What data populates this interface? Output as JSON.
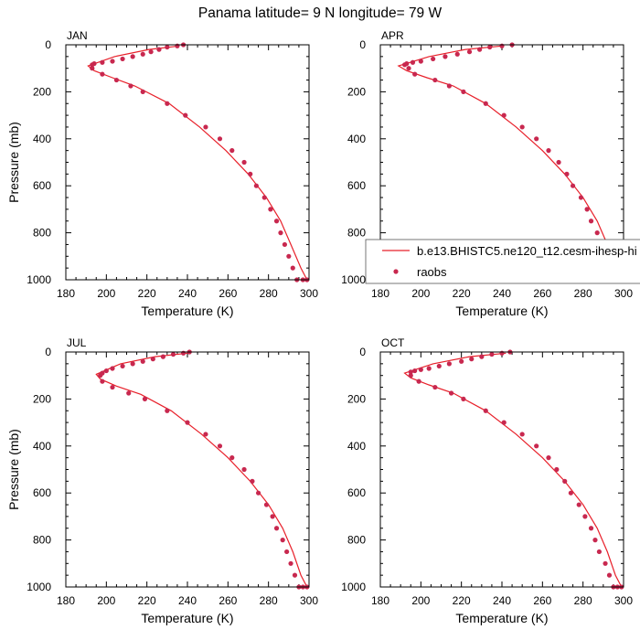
{
  "title": "Panama  latitude= 9 N longitude= 79 W",
  "legend": {
    "model_label": "b.e13.BHISTC5.ne120_t12.cesm-ihesp-hi",
    "obs_label": "raobs"
  },
  "colors": {
    "model_line": "#e8202a",
    "obs_marker": "#c8284f",
    "frame": "#000000"
  },
  "chart_data": [
    {
      "type": "line",
      "panel": "JAN",
      "xlabel": "Temperature (K)",
      "ylabel": "Pressure (mb)",
      "xlim": [
        180,
        300
      ],
      "ylim": [
        1000,
        0
      ],
      "xticks": [
        180,
        200,
        220,
        240,
        260,
        280,
        300
      ],
      "yticks": [
        0,
        200,
        400,
        600,
        800,
        1000
      ],
      "series": [
        {
          "name": "b.e13.BHISTC5.ne120_t12.cesm-ihesp-hi",
          "kind": "line",
          "x": [
            236,
            221,
            204,
            191,
            194,
            203,
            214,
            231,
            246,
            259,
            270,
            279,
            286,
            291,
            296,
            299
          ],
          "y": [
            5,
            20,
            50,
            90,
            110,
            140,
            175,
            250,
            350,
            450,
            550,
            650,
            750,
            850,
            950,
            1000
          ]
        },
        {
          "name": "raobs",
          "kind": "scatter",
          "x": [
            238,
            235,
            230,
            226,
            222,
            218,
            213,
            208,
            203,
            198,
            194,
            193,
            193,
            198,
            205,
            212,
            218,
            230,
            239,
            249,
            256,
            262,
            268,
            271,
            274,
            278,
            281,
            284,
            286,
            288,
            290,
            292,
            294,
            297,
            299
          ],
          "y": [
            0,
            5,
            10,
            20,
            30,
            40,
            50,
            60,
            70,
            75,
            80,
            85,
            100,
            125,
            150,
            175,
            200,
            250,
            300,
            350,
            400,
            450,
            500,
            550,
            600,
            650,
            700,
            750,
            800,
            850,
            900,
            950,
            1000,
            1000,
            1000
          ]
        }
      ]
    },
    {
      "type": "line",
      "panel": "APR",
      "xlabel": "Temperature (K)",
      "ylabel": "",
      "xlim": [
        180,
        300
      ],
      "ylim": [
        1000,
        0
      ],
      "xticks": [
        180,
        200,
        220,
        240,
        260,
        280,
        300
      ],
      "yticks": [
        0,
        200,
        400,
        600,
        800,
        1000
      ],
      "series": [
        {
          "name": "b.e13.BHISTC5.ne120_t12.cesm-ihesp-hi",
          "kind": "line",
          "x": [
            240,
            222,
            204,
            189,
            193,
            203,
            216,
            232,
            247,
            260,
            271,
            280,
            287,
            292,
            296,
            299
          ],
          "y": [
            5,
            20,
            50,
            90,
            110,
            140,
            175,
            250,
            350,
            450,
            550,
            650,
            750,
            850,
            950,
            1000
          ]
        },
        {
          "name": "raobs",
          "kind": "scatter",
          "x": [
            245,
            240,
            234,
            229,
            224,
            218,
            212,
            206,
            200,
            196,
            193,
            192,
            194,
            197,
            207,
            214,
            221,
            232,
            241,
            250,
            257,
            263,
            268,
            272,
            275,
            279,
            282,
            284,
            287,
            289,
            291,
            293,
            295,
            297,
            299
          ],
          "y": [
            0,
            5,
            10,
            20,
            30,
            40,
            50,
            60,
            70,
            75,
            80,
            85,
            100,
            125,
            150,
            175,
            200,
            250,
            300,
            350,
            400,
            450,
            500,
            550,
            600,
            650,
            700,
            750,
            800,
            850,
            900,
            950,
            1000,
            1000,
            1000
          ]
        }
      ]
    },
    {
      "type": "line",
      "panel": "JUL",
      "xlabel": "Temperature (K)",
      "ylabel": "Pressure (mb)",
      "xlim": [
        180,
        300
      ],
      "ylim": [
        1000,
        0
      ],
      "xticks": [
        180,
        200,
        220,
        240,
        260,
        280,
        300
      ],
      "yticks": [
        0,
        200,
        400,
        600,
        800,
        1000
      ],
      "series": [
        {
          "name": "b.e13.BHISTC5.ne120_t12.cesm-ihesp-hi",
          "kind": "line",
          "x": [
            240,
            224,
            207,
            195,
            197,
            205,
            217,
            232,
            247,
            260,
            271,
            280,
            287,
            292,
            296,
            299
          ],
          "y": [
            5,
            20,
            50,
            95,
            115,
            145,
            180,
            250,
            350,
            450,
            550,
            650,
            750,
            850,
            950,
            1000
          ]
        },
        {
          "name": "raobs",
          "kind": "scatter",
          "x": [
            241,
            238,
            233,
            228,
            223,
            218,
            213,
            208,
            203,
            200,
            198,
            197,
            198,
            203,
            211,
            219,
            230,
            240,
            249,
            256,
            262,
            268,
            272,
            275,
            279,
            282,
            284,
            287,
            289,
            291,
            293,
            295,
            297,
            299
          ],
          "y": [
            0,
            5,
            10,
            20,
            30,
            40,
            50,
            60,
            70,
            80,
            90,
            100,
            125,
            150,
            175,
            200,
            250,
            300,
            350,
            400,
            450,
            500,
            550,
            600,
            650,
            700,
            750,
            800,
            850,
            900,
            950,
            1000,
            1000,
            1000
          ]
        }
      ]
    },
    {
      "type": "line",
      "panel": "OCT",
      "xlabel": "Temperature (K)",
      "ylabel": "",
      "xlim": [
        180,
        300
      ],
      "ylim": [
        1000,
        0
      ],
      "xticks": [
        180,
        200,
        220,
        240,
        260,
        280,
        300
      ],
      "yticks": [
        0,
        200,
        400,
        600,
        800,
        1000
      ],
      "series": [
        {
          "name": "b.e13.BHISTC5.ne120_t12.cesm-ihesp-hi",
          "kind": "line",
          "x": [
            242,
            224,
            206,
            192,
            195,
            204,
            216,
            232,
            247,
            260,
            271,
            280,
            287,
            292,
            296,
            299
          ],
          "y": [
            5,
            20,
            50,
            90,
            110,
            140,
            175,
            250,
            350,
            450,
            550,
            650,
            750,
            850,
            950,
            1000
          ]
        },
        {
          "name": "raobs",
          "kind": "scatter",
          "x": [
            244,
            240,
            235,
            230,
            225,
            220,
            214,
            209,
            204,
            200,
            197,
            195,
            195,
            199,
            207,
            215,
            221,
            232,
            241,
            250,
            257,
            263,
            267,
            271,
            274,
            278,
            281,
            284,
            286,
            288,
            291,
            293,
            295,
            297,
            299
          ],
          "y": [
            0,
            5,
            10,
            20,
            30,
            40,
            50,
            60,
            70,
            75,
            80,
            85,
            100,
            125,
            150,
            175,
            200,
            250,
            300,
            350,
            400,
            450,
            500,
            550,
            600,
            650,
            700,
            750,
            800,
            850,
            900,
            950,
            1000,
            1000,
            1000
          ]
        }
      ]
    }
  ]
}
